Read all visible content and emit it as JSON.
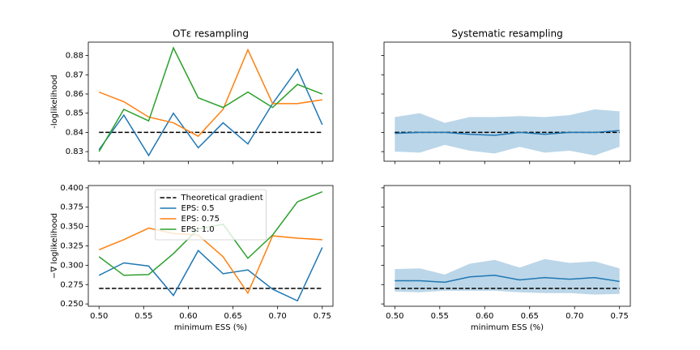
{
  "chart_data": [
    {
      "type": "line",
      "title": "OTε resampling",
      "ylabel": "-loglikelihood",
      "x": [
        0.5,
        0.5278,
        0.5556,
        0.5833,
        0.6111,
        0.6389,
        0.6667,
        0.6944,
        0.7222,
        0.75
      ],
      "series": [
        {
          "color": "#1f77b4",
          "values": [
            0.831,
            0.849,
            0.828,
            0.85,
            0.832,
            0.845,
            0.834,
            0.855,
            0.873,
            0.844
          ]
        },
        {
          "color": "#ff7f0e",
          "values": [
            0.861,
            0.856,
            0.848,
            0.845,
            0.838,
            0.852,
            0.883,
            0.855,
            0.855,
            0.857
          ]
        },
        {
          "color": "#2ca02c",
          "values": [
            0.83,
            0.852,
            0.846,
            0.884,
            0.858,
            0.853,
            0.861,
            0.853,
            0.865,
            0.86
          ]
        }
      ],
      "hline": {
        "value": 0.84,
        "color": "#000000"
      },
      "xlim": [
        0.488,
        0.762
      ],
      "ylim": [
        0.825,
        0.887
      ],
      "xticks": [
        0.5,
        0.55,
        0.6,
        0.65,
        0.7,
        0.75
      ],
      "yticks": [
        0.83,
        0.84,
        0.85,
        0.86,
        0.87,
        0.88
      ]
    },
    {
      "type": "line",
      "title": "Systematic resampling",
      "x": [
        0.5,
        0.5278,
        0.5556,
        0.5833,
        0.6111,
        0.6389,
        0.6667,
        0.6944,
        0.7222,
        0.75
      ],
      "series": [
        {
          "color": "#1f77b4",
          "values": [
            0.8395,
            0.84,
            0.84,
            0.839,
            0.8385,
            0.84,
            0.839,
            0.84,
            0.84,
            0.841
          ]
        }
      ],
      "band": {
        "color": "#1f77b4",
        "opacity": 0.3,
        "upper": [
          0.848,
          0.85,
          0.845,
          0.848,
          0.848,
          0.8485,
          0.848,
          0.849,
          0.852,
          0.851
        ],
        "lower": [
          0.83,
          0.8295,
          0.8335,
          0.8305,
          0.829,
          0.8325,
          0.8295,
          0.8305,
          0.828,
          0.8325
        ]
      },
      "hline": {
        "value": 0.84,
        "color": "#000000"
      },
      "xlim": [
        0.488,
        0.762
      ],
      "ylim": [
        0.825,
        0.887
      ],
      "xticks": [
        0.5,
        0.55,
        0.6,
        0.65,
        0.7,
        0.75
      ],
      "yticks": [
        0.83,
        0.84,
        0.85,
        0.86,
        0.87,
        0.88
      ]
    },
    {
      "type": "line",
      "ylabel": "−∇ loglikelihood",
      "xlabel": "minimum ESS (%)",
      "x": [
        0.5,
        0.5278,
        0.5556,
        0.5833,
        0.6111,
        0.6389,
        0.6667,
        0.6944,
        0.7222,
        0.75
      ],
      "series": [
        {
          "name": "EPS: 0.5",
          "color": "#1f77b4",
          "values": [
            0.287,
            0.303,
            0.299,
            0.261,
            0.319,
            0.289,
            0.294,
            0.269,
            0.254,
            0.323
          ]
        },
        {
          "name": "EPS: 0.75",
          "color": "#ff7f0e",
          "values": [
            0.32,
            0.333,
            0.348,
            0.341,
            0.339,
            0.311,
            0.264,
            0.338,
            0.335,
            0.333
          ]
        },
        {
          "name": "EPS: 1.0",
          "color": "#2ca02c",
          "values": [
            0.311,
            0.287,
            0.288,
            0.315,
            0.347,
            0.353,
            0.309,
            0.339,
            0.382,
            0.395
          ]
        }
      ],
      "hline": {
        "name": "Theoretical gradient",
        "value": 0.27,
        "color": "#000000"
      },
      "legend": "upper center",
      "xlim": [
        0.488,
        0.762
      ],
      "ylim": [
        0.247,
        0.403
      ],
      "xticks": [
        {
          "value": 0.5,
          "label": "0.50"
        },
        0.55,
        {
          "value": 0.6,
          "label": "0.60"
        },
        0.65,
        {
          "value": 0.7,
          "label": "0.70"
        },
        0.75
      ],
      "yticks": [
        {
          "value": 0.25,
          "label": "0.250"
        },
        0.275,
        {
          "value": 0.3,
          "label": "0.300"
        },
        0.325,
        {
          "value": 0.35,
          "label": "0.350"
        },
        0.375,
        {
          "value": 0.4,
          "label": "0.400"
        }
      ]
    },
    {
      "type": "line",
      "xlabel": "minimum ESS (%)",
      "x": [
        0.5,
        0.5278,
        0.5556,
        0.5833,
        0.6111,
        0.6389,
        0.6667,
        0.6944,
        0.7222,
        0.75
      ],
      "series": [
        {
          "color": "#1f77b4",
          "values": [
            0.28,
            0.28,
            0.278,
            0.285,
            0.287,
            0.281,
            0.284,
            0.282,
            0.284,
            0.279
          ]
        }
      ],
      "band": {
        "color": "#1f77b4",
        "opacity": 0.3,
        "upper": [
          0.295,
          0.296,
          0.288,
          0.302,
          0.307,
          0.297,
          0.308,
          0.303,
          0.305,
          0.296
        ],
        "lower": [
          0.266,
          0.265,
          0.267,
          0.267,
          0.267,
          0.265,
          0.264,
          0.264,
          0.262,
          0.263
        ]
      },
      "hline": {
        "value": 0.27,
        "color": "#000000"
      },
      "xlim": [
        0.488,
        0.762
      ],
      "ylim": [
        0.247,
        0.403
      ],
      "xticks": [
        {
          "value": 0.5,
          "label": "0.50"
        },
        0.55,
        {
          "value": 0.6,
          "label": "0.60"
        },
        0.65,
        {
          "value": 0.7,
          "label": "0.70"
        },
        0.75
      ],
      "yticks": [
        0.25,
        0.275,
        0.3,
        0.325,
        0.35,
        0.375,
        0.4
      ]
    }
  ]
}
